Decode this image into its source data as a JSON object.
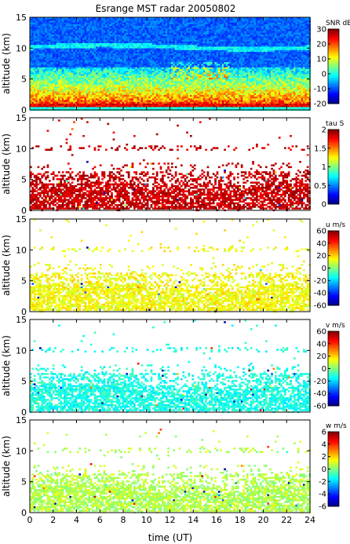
{
  "figure": {
    "title": "Esrange MST radar 20050802",
    "xlabel": "time (UT)"
  },
  "chart_data": [
    {
      "type": "heatmap",
      "quantity": "SNR",
      "colorbar_label": "SNR dB",
      "ylabel": "altitude (km)",
      "xlim": [
        0,
        24
      ],
      "ylim": [
        0,
        15
      ],
      "xticks": [
        "0",
        "2",
        "4",
        "6",
        "8",
        "10",
        "12",
        "14",
        "16",
        "18",
        "20",
        "22",
        "24"
      ],
      "yticks": [
        "0",
        "5",
        "10",
        "15"
      ],
      "clim": [
        -20,
        30
      ],
      "cticks": [
        "-20",
        "-10",
        "0",
        "10",
        "20",
        "30"
      ],
      "fill": "dense"
    },
    {
      "type": "heatmap",
      "quantity": "tau",
      "colorbar_label": "tau S",
      "ylabel": "altitude (km)",
      "xlim": [
        0,
        24
      ],
      "ylim": [
        0,
        15
      ],
      "xticks": [
        "0",
        "2",
        "4",
        "6",
        "8",
        "10",
        "12",
        "14",
        "16",
        "18",
        "20",
        "22",
        "24"
      ],
      "yticks": [
        "0",
        "5",
        "10",
        "15"
      ],
      "clim": [
        0,
        2
      ],
      "cticks": [
        "0",
        "0.5",
        "1",
        "1.5",
        "2"
      ],
      "fill": "sparse"
    },
    {
      "type": "heatmap",
      "quantity": "u",
      "colorbar_label": "u m/s",
      "ylabel": "altitude (km)",
      "xlim": [
        0,
        24
      ],
      "ylim": [
        0,
        15
      ],
      "xticks": [
        "0",
        "2",
        "4",
        "6",
        "8",
        "10",
        "12",
        "14",
        "16",
        "18",
        "20",
        "22",
        "24"
      ],
      "yticks": [
        "0",
        "5",
        "10",
        "15"
      ],
      "clim": [
        -60,
        60
      ],
      "cticks": [
        "-60",
        "-40",
        "-20",
        "0",
        "20",
        "40",
        "60"
      ],
      "fill": "sparse"
    },
    {
      "type": "heatmap",
      "quantity": "v",
      "colorbar_label": "v m/s",
      "ylabel": "altitude (km)",
      "xlim": [
        0,
        24
      ],
      "ylim": [
        0,
        15
      ],
      "xticks": [
        "0",
        "2",
        "4",
        "6",
        "8",
        "10",
        "12",
        "14",
        "16",
        "18",
        "20",
        "22",
        "24"
      ],
      "yticks": [
        "0",
        "5",
        "10",
        "15"
      ],
      "clim": [
        -60,
        60
      ],
      "cticks": [
        "-60",
        "-40",
        "-20",
        "0",
        "20",
        "40",
        "60"
      ],
      "fill": "sparse"
    },
    {
      "type": "heatmap",
      "quantity": "w",
      "colorbar_label": "w m/s",
      "ylabel": "altitude (km)",
      "xlim": [
        0,
        24
      ],
      "ylim": [
        0,
        15
      ],
      "xticks": [
        "0",
        "2",
        "4",
        "6",
        "8",
        "10",
        "12",
        "14",
        "16",
        "18",
        "20",
        "22",
        "24"
      ],
      "yticks": [
        "0",
        "5",
        "10",
        "15"
      ],
      "clim": [
        -6,
        6
      ],
      "cticks": [
        "-6",
        "-4",
        "-2",
        "0",
        "2",
        "4",
        "6"
      ],
      "fill": "sparse"
    }
  ]
}
